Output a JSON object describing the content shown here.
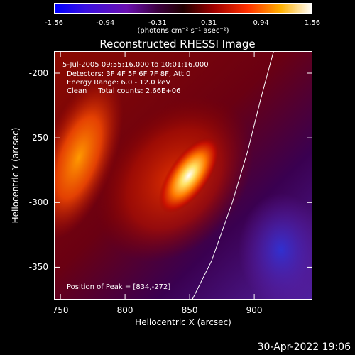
{
  "colorbar": {
    "ticks": [
      "-1.56",
      "-0.94",
      "-0.31",
      "0.31",
      "0.94",
      "1.56"
    ],
    "unit_label": "(photons cm⁻² s⁻¹ asec⁻²)",
    "range": [
      -1.56,
      1.56
    ]
  },
  "chart_data": {
    "type": "heatmap",
    "title": "Reconstructed RHESSI Image",
    "xlabel": "Heliocentric X (arcsec)",
    "ylabel": "Heliocentric Y (arcsec)",
    "xlim": [
      745,
      945
    ],
    "ylim": [
      -375,
      -183
    ],
    "xticks": [
      "750",
      "800",
      "850",
      "900"
    ],
    "xtick_values": [
      750,
      800,
      850,
      900
    ],
    "yticks": [
      "-200",
      "-250",
      "-300",
      "-350"
    ],
    "ytick_values": [
      -200,
      -250,
      -300,
      -350
    ],
    "peak": [
      834,
      -272
    ],
    "limb_curve": [
      [
        915,
        -183
      ],
      [
        905,
        -220
      ],
      [
        895,
        -260
      ],
      [
        883,
        -300
      ],
      [
        867,
        -345
      ],
      [
        852,
        -375
      ]
    ],
    "annotations": {
      "time": "5-Jul-2005 09:55:16.000 to 10:01:16.000",
      "detectors": "Detectors: 3F 4F 5F 6F 7F 8F, Att 0",
      "energy": "Energy Range: 6.0 - 12.0 keV",
      "clean": "Clean     Total counts: 2.66E+06",
      "peak": "Position of Peak = [834,-272]"
    }
  },
  "timestamp": "30-Apr-2022 19:06"
}
